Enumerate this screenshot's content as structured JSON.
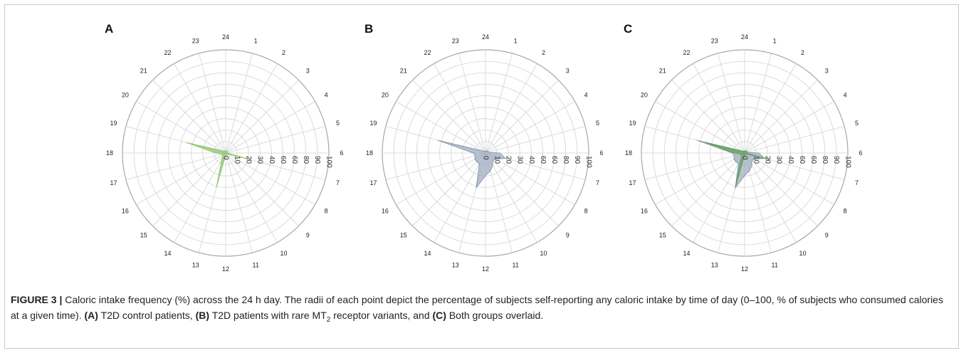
{
  "colors": {
    "control": "#8dc46a",
    "variant": "#9aa8bc",
    "overlay_control": "#5e9e52",
    "grid": "#d3d3d3",
    "outer_ring": "#a8a8a8"
  },
  "chart_data": [
    {
      "type": "radar",
      "panel_label": "A",
      "hours": [
        "24",
        "1",
        "2",
        "3",
        "4",
        "5",
        "6",
        "7",
        "8",
        "9",
        "10",
        "11",
        "12",
        "13",
        "14",
        "15",
        "16",
        "17",
        "18",
        "19",
        "20",
        "21",
        "22",
        "23"
      ],
      "radial_ticks": [
        "0",
        "10",
        "20",
        "30",
        "40",
        "60",
        "60",
        "80",
        "90",
        "100"
      ],
      "rlim": [
        0,
        100
      ],
      "series": [
        {
          "values": [
            2,
            2,
            2,
            2,
            2,
            2,
            2,
            25,
            2,
            2,
            2,
            2,
            2,
            35,
            8,
            4,
            4,
            4,
            10,
            40,
            5,
            2,
            2,
            2
          ]
        }
      ]
    },
    {
      "type": "radar",
      "panel_label": "B",
      "hours": [
        "24",
        "1",
        "2",
        "3",
        "4",
        "5",
        "6",
        "7",
        "8",
        "9",
        "10",
        "11",
        "12",
        "13",
        "14",
        "15",
        "16",
        "17",
        "18",
        "19",
        "20",
        "21",
        "22",
        "23"
      ],
      "radial_ticks": [
        "0",
        "10",
        "20",
        "30",
        "40",
        "60",
        "60",
        "80",
        "90",
        "100"
      ],
      "rlim": [
        0,
        100
      ],
      "series": [
        {
          "values": [
            2,
            2,
            2,
            3,
            3,
            3,
            14,
            20,
            12,
            10,
            14,
            18,
            22,
            35,
            12,
            12,
            12,
            10,
            12,
            48,
            5,
            2,
            2,
            2
          ]
        }
      ]
    },
    {
      "type": "radar",
      "panel_label": "C",
      "hours": [
        "24",
        "1",
        "2",
        "3",
        "4",
        "5",
        "6",
        "7",
        "8",
        "9",
        "10",
        "11",
        "12",
        "13",
        "14",
        "15",
        "16",
        "17",
        "18",
        "19",
        "20",
        "21",
        "22",
        "23"
      ],
      "radial_ticks": [
        "0",
        "10",
        "20",
        "30",
        "40",
        "60",
        "60",
        "80",
        "90",
        "100"
      ],
      "rlim": [
        0,
        100
      ],
      "series": [
        {
          "values": [
            2,
            2,
            2,
            3,
            3,
            3,
            14,
            20,
            12,
            10,
            14,
            18,
            22,
            35,
            12,
            12,
            12,
            10,
            12,
            48,
            5,
            2,
            2,
            2
          ]
        },
        {
          "values": [
            2,
            2,
            2,
            2,
            2,
            2,
            2,
            25,
            2,
            2,
            2,
            2,
            2,
            35,
            8,
            4,
            4,
            4,
            10,
            40,
            5,
            2,
            2,
            2
          ]
        }
      ]
    }
  ],
  "caption": {
    "figure_label": "FIGURE 3 |",
    "text_1": " Caloric intake frequency (%) across the 24 h day. The radii of each point depict the percentage of subjects self-reporting any caloric intake by time of day (0–100, % of subjects who consumed calories at a given time). ",
    "label_a": "(A)",
    "text_2": " T2D control patients, ",
    "label_b": "(B)",
    "text_3": " T2D patients with rare MT",
    "sub_2": "2",
    "text_4": " receptor variants, and ",
    "label_c": "(C)",
    "text_5": " Both groups overlaid."
  }
}
